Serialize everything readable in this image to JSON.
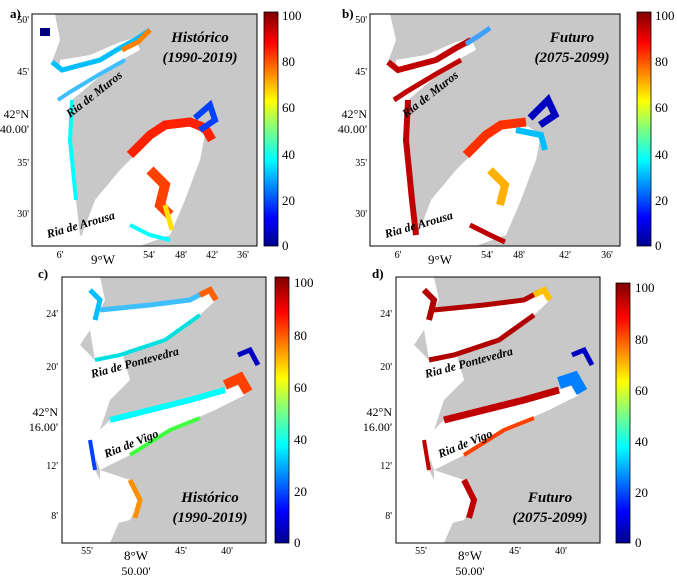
{
  "panels": [
    {
      "letter": "a)",
      "label_line1": "Histórico",
      "label_line2": "(1990-2019)",
      "ria_names": [
        "Ria de Muros",
        "Ria de Arousa"
      ],
      "y_ticks": [
        "50'",
        "45'",
        "35'",
        "30'"
      ],
      "y_main_deg": "42°N",
      "y_main_min": "40.00'",
      "x_ticks": [
        "6'",
        "54'",
        "48'",
        "42'",
        "36'"
      ],
      "x_main": "9°W",
      "x_main_min": ""
    },
    {
      "letter": "b)",
      "label_line1": "Futuro",
      "label_line2": "(2075-2099)",
      "ria_names": [
        "Ria de Muros",
        "Ria de Arousa"
      ],
      "y_ticks": [
        "50'",
        "45'",
        "35'",
        "30'"
      ],
      "y_main_deg": "42°N",
      "y_main_min": "40.00'",
      "x_ticks": [
        "6'",
        "54'",
        "48'",
        "42'",
        "36'"
      ],
      "x_main": "9°W",
      "x_main_min": ""
    },
    {
      "letter": "c)",
      "label_line1": "Histórico",
      "label_line2": "(1990-2019)",
      "ria_names": [
        "Ria de Pontevedra",
        "Ria de Vigo"
      ],
      "y_ticks": [
        "24'",
        "20'",
        "12'",
        "8'"
      ],
      "y_main_deg": "42°N",
      "y_main_min": "16.00'",
      "x_ticks": [
        "55'",
        "45'",
        "40'"
      ],
      "x_main": "8°W",
      "x_main_min": "50.00'"
    },
    {
      "letter": "d)",
      "label_line1": "Futuro",
      "label_line2": "(2075-2099)",
      "ria_names": [
        "Ria de Pontevedra",
        "Ria de Vigo"
      ],
      "y_ticks": [
        "24'",
        "20'",
        "12'",
        "8'"
      ],
      "y_main_deg": "42°N",
      "y_main_min": "16.00'",
      "x_ticks": [
        "55'",
        "45'",
        "40'"
      ],
      "x_main": "8°W",
      "x_main_min": "50.00'"
    }
  ],
  "colorbar": {
    "ticks": [
      "100",
      "80",
      "60",
      "40",
      "20",
      "0"
    ],
    "range": [
      0,
      100
    ],
    "colormap": "jet"
  },
  "colors": {
    "land": "#c8c8c8",
    "water": "#ffffff",
    "frame": "#000000"
  }
}
